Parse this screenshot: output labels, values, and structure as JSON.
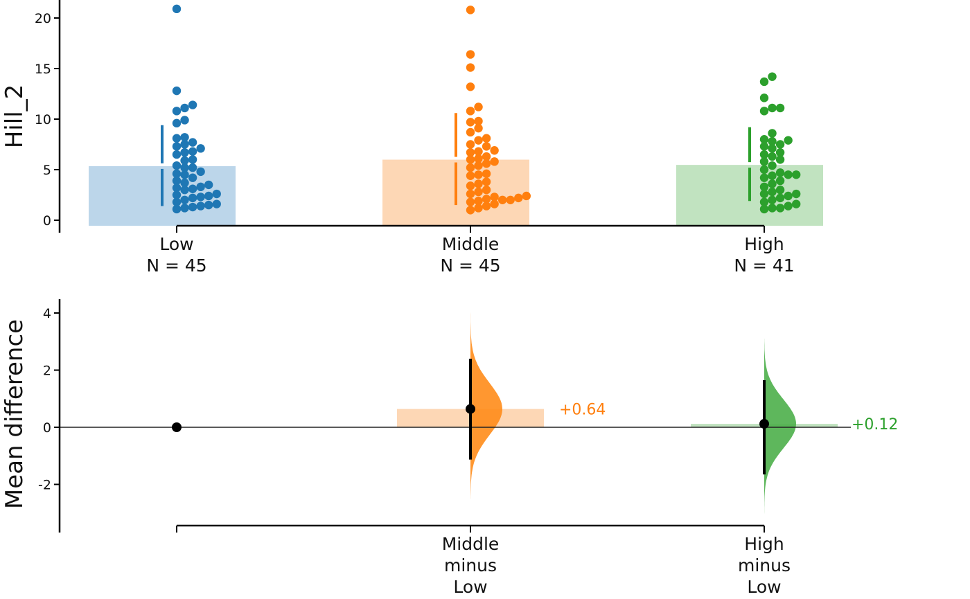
{
  "chart_data": [
    {
      "type": "scatter",
      "subtype": "swarm-with-mean-bars",
      "ylabel": "Hill_2",
      "ylim": [
        -0.6,
        21.5
      ],
      "yticks": [
        0,
        5,
        10,
        15,
        20
      ],
      "grid": false,
      "groups": [
        {
          "name": "Low",
          "n_label": "N = 45",
          "color": "#1f77b4",
          "bar_color": "#bcd6ea",
          "mean": 5.35,
          "sd_lower": 1.4,
          "sd_upper": 9.4,
          "values": [
            20.9,
            12.8,
            11.4,
            11.1,
            10.8,
            9.9,
            9.6,
            8.2,
            8.1,
            7.7,
            7.5,
            7.3,
            7.1,
            6.8,
            6.7,
            6.5,
            6.0,
            5.9,
            5.4,
            5.2,
            5.2,
            4.8,
            4.6,
            4.5,
            4.2,
            3.9,
            3.7,
            3.5,
            3.3,
            3.2,
            3.1,
            3.0,
            2.6,
            2.5,
            2.4,
            2.3,
            2.2,
            2.0,
            1.8,
            1.6,
            1.5,
            1.4,
            1.3,
            1.2,
            1.1
          ]
        },
        {
          "name": "Middle",
          "n_label": "N = 45",
          "color": "#ff7f0e",
          "bar_color": "#fdd7b5",
          "mean": 5.99,
          "sd_lower": 1.5,
          "sd_upper": 10.6,
          "values": [
            20.8,
            16.4,
            15.1,
            13.2,
            11.2,
            10.8,
            9.8,
            9.7,
            9.1,
            8.7,
            8.1,
            7.9,
            7.5,
            7.3,
            6.9,
            6.8,
            6.7,
            6.3,
            6.1,
            6.0,
            5.8,
            5.6,
            5.4,
            5.2,
            4.6,
            4.4,
            4.5,
            3.8,
            3.6,
            3.4,
            3.0,
            2.8,
            2.6,
            2.4,
            2.3,
            2.2,
            2.1,
            2.0,
            2.0,
            1.9,
            1.8,
            1.6,
            1.4,
            1.2,
            1.0
          ]
        },
        {
          "name": "High",
          "n_label": "N = 41",
          "color": "#2ca02c",
          "bar_color": "#c1e3c0",
          "mean": 5.47,
          "sd_lower": 1.9,
          "sd_upper": 9.2,
          "values": [
            14.2,
            13.7,
            12.1,
            11.1,
            11.1,
            10.8,
            8.6,
            8.0,
            7.9,
            7.8,
            7.5,
            7.3,
            7.1,
            6.7,
            6.5,
            6.3,
            6.0,
            5.8,
            5.4,
            5.0,
            4.7,
            4.5,
            4.5,
            4.4,
            4.2,
            3.9,
            3.6,
            3.3,
            3.0,
            2.8,
            2.6,
            2.6,
            2.4,
            2.2,
            2.0,
            1.8,
            1.6,
            1.4,
            1.2,
            1.2,
            1.1
          ]
        }
      ]
    },
    {
      "type": "scatter",
      "subtype": "effect-size-estimation",
      "ylabel": "Mean difference",
      "ylim": [
        -3.6,
        4.5
      ],
      "yticks": [
        -2,
        0,
        2,
        4
      ],
      "yticklabels": [
        "-2",
        "0",
        "2",
        "4"
      ],
      "grid": false,
      "reference_line": 0,
      "comparisons": [
        {
          "name": "Low",
          "label_lines": [],
          "effect": 0,
          "ci_lower": null,
          "ci_upper": null,
          "color": "#000000"
        },
        {
          "name": "Middle minus Low",
          "label_lines": [
            "Middle",
            "minus",
            "Low"
          ],
          "effect": 0.64,
          "effect_label": "+0.64",
          "ci_lower": -1.13,
          "ci_upper": 2.4,
          "dist_min": -2.5,
          "dist_max": 4.2,
          "dist_sd": 0.9,
          "color": "#ff7f0e",
          "dist_color": "#ff8c1a",
          "bar_color": "#fdd7b5"
        },
        {
          "name": "High minus Low",
          "label_lines": [
            "High",
            "minus",
            "Low"
          ],
          "effect": 0.12,
          "effect_label": "+0.12",
          "ci_lower": -1.65,
          "ci_upper": 1.65,
          "dist_min": -3.2,
          "dist_max": 3.1,
          "dist_sd": 0.85,
          "color": "#2ca02c",
          "dist_color": "#4daf4a",
          "bar_color": "#c1e3c0"
        }
      ]
    }
  ]
}
